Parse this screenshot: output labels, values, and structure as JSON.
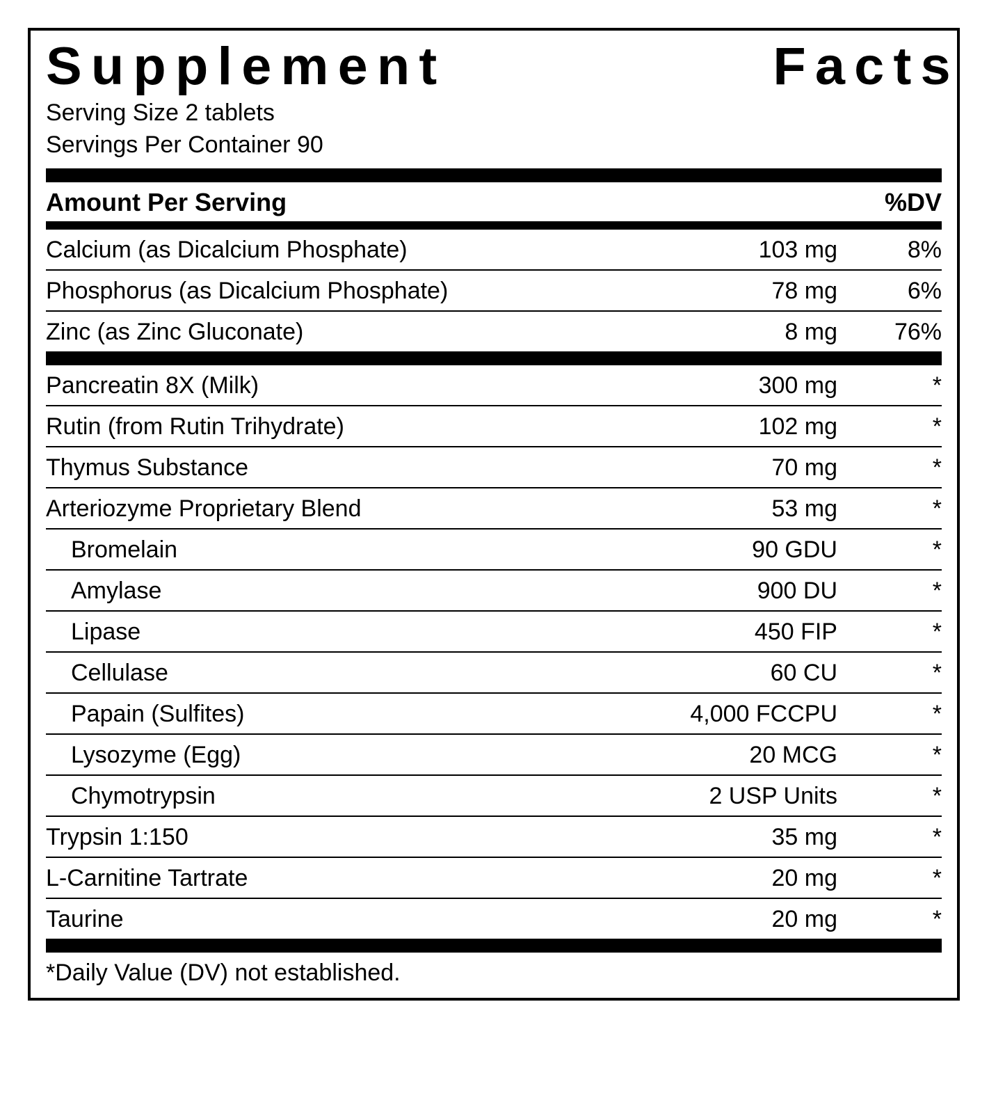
{
  "title": "Supplement Facts",
  "serving_size_label": "Serving Size 2 tablets",
  "servings_per_container_label": "Servings Per Container 90",
  "header_left": "Amount Per Serving",
  "header_right": "%DV",
  "footnote": "*Daily Value (DV) not established.",
  "section1": [
    {
      "name": "Calcium (as Dicalcium Phosphate)",
      "amount": "103 mg",
      "dv": "8%"
    },
    {
      "name": "Phosphorus (as Dicalcium Phosphate)",
      "amount": "78 mg",
      "dv": "6%"
    },
    {
      "name": "Zinc (as Zinc Gluconate)",
      "amount": "8 mg",
      "dv": "76%"
    }
  ],
  "section2": [
    {
      "name": "Pancreatin 8X (Milk)",
      "amount": "300 mg",
      "dv": "*",
      "indent": false,
      "line": false
    },
    {
      "name": "Rutin (from Rutin Trihydrate)",
      "amount": "102 mg",
      "dv": "*",
      "indent": false,
      "line": true
    },
    {
      "name": "Thymus Substance",
      "amount": "70 mg",
      "dv": "*",
      "indent": false,
      "line": true
    },
    {
      "name": "Arteriozyme Proprietary Blend",
      "amount": "53 mg",
      "dv": "*",
      "indent": false,
      "line": true
    },
    {
      "name": "Bromelain",
      "amount": "90 GDU",
      "dv": "*",
      "indent": true,
      "line": true
    },
    {
      "name": "Amylase",
      "amount": "900 DU",
      "dv": "*",
      "indent": true,
      "line": true
    },
    {
      "name": "Lipase",
      "amount": "450 FIP",
      "dv": "*",
      "indent": true,
      "line": true
    },
    {
      "name": "Cellulase",
      "amount": "60 CU",
      "dv": "*",
      "indent": true,
      "line": true
    },
    {
      "name": "Papain (Sulfites)",
      "amount": "4,000 FCCPU",
      "dv": "*",
      "indent": true,
      "line": true
    },
    {
      "name": "Lysozyme (Egg)",
      "amount": "20 MCG",
      "dv": "*",
      "indent": true,
      "line": true
    },
    {
      "name": "Chymotrypsin",
      "amount": "2 USP Units",
      "dv": "*",
      "indent": true,
      "line": true
    },
    {
      "name": "Trypsin 1:150",
      "amount": "35 mg",
      "dv": "*",
      "indent": false,
      "line": true
    },
    {
      "name": "L-Carnitine Tartrate",
      "amount": "20 mg",
      "dv": "*",
      "indent": false,
      "line": true
    },
    {
      "name": "Taurine",
      "amount": "20 mg",
      "dv": "*",
      "indent": false,
      "line": true
    }
  ]
}
